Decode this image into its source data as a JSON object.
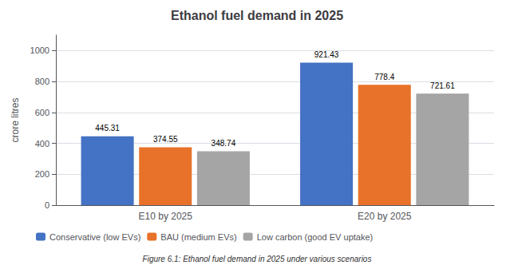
{
  "chart_data": {
    "type": "bar",
    "title": "Ethanol fuel demand in 2025",
    "ylabel": "crore litres",
    "categories": [
      "E10 by 2025",
      "E20 by 2025"
    ],
    "series": [
      {
        "name": "Conservative (low EVs)",
        "color": "#4472C4",
        "values": [
          445.31,
          921.43
        ]
      },
      {
        "name": "BAU (medium EVs)",
        "color": "#E8722A",
        "values": [
          374.55,
          778.4
        ]
      },
      {
        "name": "Low carbon (good EV uptake)",
        "color": "#A5A5A5",
        "values": [
          348.74,
          721.61
        ]
      }
    ],
    "ylim": [
      0,
      1100
    ],
    "yticks": [
      0,
      200,
      400,
      600,
      800,
      1000
    ],
    "grid": true,
    "legend": "lower left",
    "data_labels": true,
    "annotations": [
      "Figure 6.1: Ethanol fuel demand in 2025 under various scenarios"
    ]
  }
}
